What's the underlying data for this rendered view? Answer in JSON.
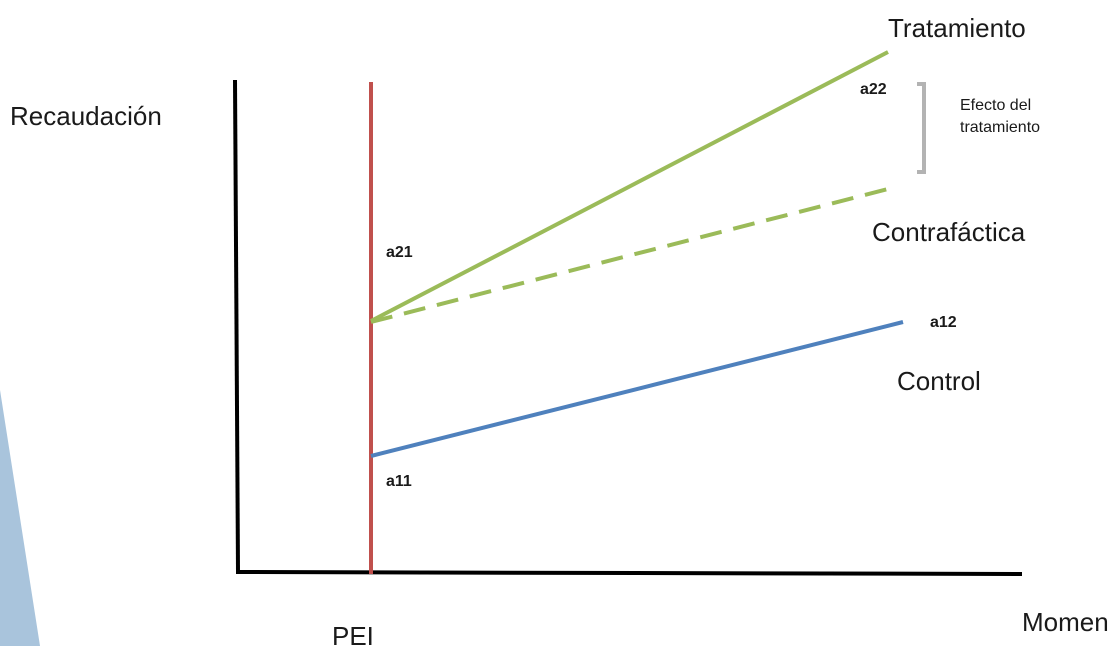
{
  "labels": {
    "y_axis": "Recaudación",
    "x_axis": "Momento",
    "intervention": "PEI",
    "treatment": "Tratamiento",
    "counterfactual": "Contrafáctica",
    "control": "Control",
    "effect_line1": "Efecto del",
    "effect_line2": "tratamiento",
    "a11": "a11",
    "a12": "a12",
    "a21": "a21",
    "a22": "a22"
  },
  "colors": {
    "axis": "#000000",
    "intervention_line": "#c0504d",
    "treatment": "#9bbb59",
    "counterfactual": "#9bbb59",
    "control": "#4f81bd",
    "bracket": "#b3b3b3",
    "side_shape": "#a9c4dc"
  }
}
